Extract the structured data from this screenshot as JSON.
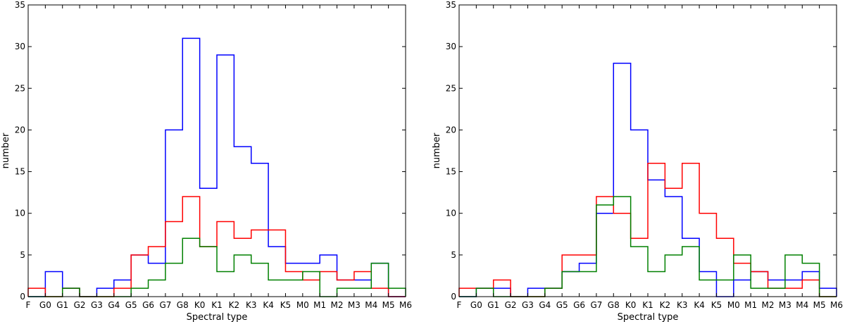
{
  "chart_data": [
    {
      "type": "histogram",
      "xlabel": "Spectral type",
      "ylabel": "number",
      "ylim": [
        0,
        35
      ],
      "yticks": [
        0,
        5,
        10,
        15,
        20,
        25,
        30,
        35
      ],
      "categories": [
        "F",
        "G0",
        "G1",
        "G2",
        "G3",
        "G4",
        "G5",
        "G6",
        "G7",
        "G8",
        "K0",
        "K1",
        "K2",
        "K3",
        "K4",
        "K5",
        "M0",
        "M1",
        "M2",
        "M3",
        "M4",
        "M5",
        "M6"
      ],
      "grid": false,
      "series": [
        {
          "color": "#0000ff",
          "values": [
            0,
            3,
            1,
            0,
            1,
            2,
            5,
            4,
            20,
            31,
            13,
            29,
            18,
            16,
            6,
            4,
            4,
            5,
            2,
            2,
            4,
            0
          ]
        },
        {
          "color": "#ff0000",
          "values": [
            1,
            0,
            1,
            0,
            0,
            1,
            5,
            6,
            9,
            12,
            6,
            9,
            7,
            8,
            8,
            3,
            2,
            3,
            2,
            3,
            1,
            0
          ]
        },
        {
          "color": "#008000",
          "values": [
            0,
            0,
            1,
            0,
            0,
            0,
            1,
            2,
            4,
            7,
            6,
            3,
            5,
            4,
            2,
            2,
            3,
            0,
            1,
            1,
            4,
            1
          ]
        }
      ]
    },
    {
      "type": "histogram",
      "xlabel": "Spectral type",
      "ylabel": "number",
      "ylim": [
        0,
        35
      ],
      "yticks": [
        0,
        5,
        10,
        15,
        20,
        25,
        30,
        35
      ],
      "categories": [
        "F",
        "G0",
        "G1",
        "G2",
        "G3",
        "G4",
        "G5",
        "G6",
        "G7",
        "G8",
        "K0",
        "K1",
        "K2",
        "K3",
        "K4",
        "K5",
        "M0",
        "M1",
        "M2",
        "M3",
        "M4",
        "M5",
        "M6"
      ],
      "grid": false,
      "series": [
        {
          "color": "#0000ff",
          "values": [
            0,
            1,
            1,
            0,
            1,
            1,
            3,
            4,
            10,
            28,
            20,
            14,
            12,
            7,
            3,
            0,
            2,
            3,
            2,
            2,
            3,
            1
          ]
        },
        {
          "color": "#ff0000",
          "values": [
            1,
            1,
            2,
            0,
            0,
            1,
            5,
            5,
            12,
            10,
            7,
            16,
            13,
            16,
            10,
            7,
            4,
            3,
            1,
            1,
            2,
            0
          ]
        },
        {
          "color": "#008000",
          "values": [
            0,
            1,
            0,
            0,
            0,
            1,
            3,
            3,
            11,
            12,
            6,
            3,
            5,
            6,
            2,
            2,
            5,
            1,
            1,
            5,
            4,
            0
          ]
        }
      ]
    }
  ]
}
